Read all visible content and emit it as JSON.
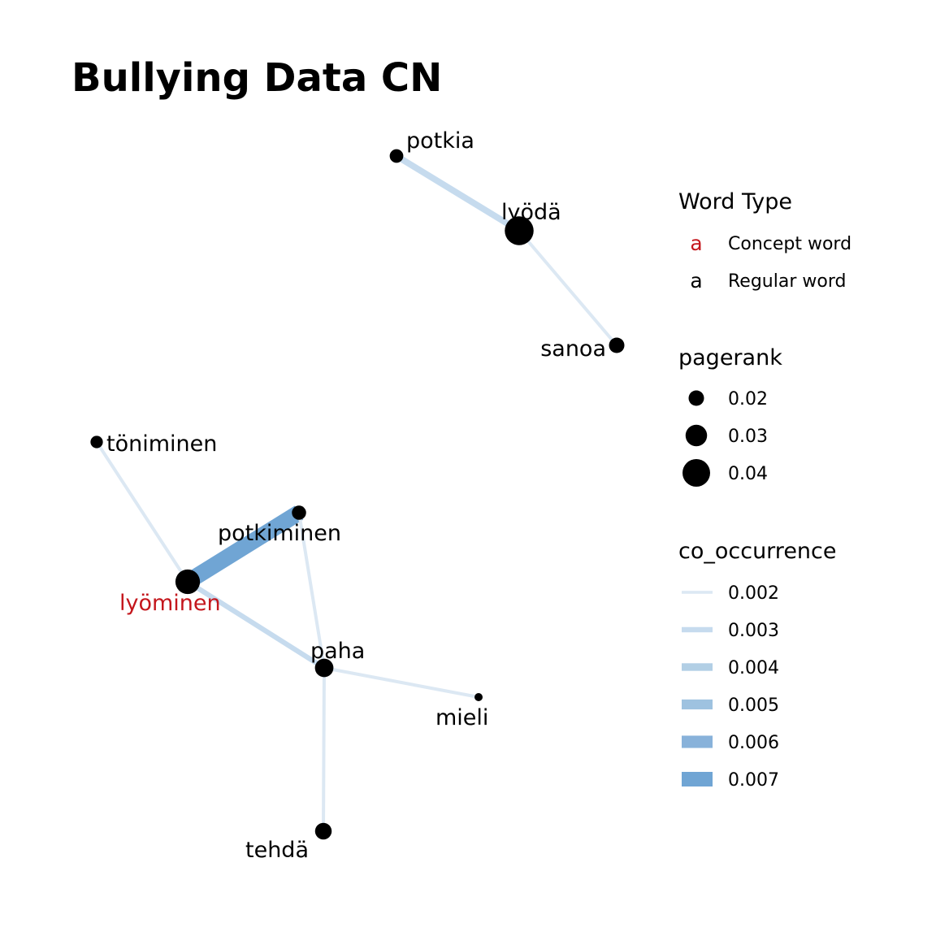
{
  "title": "Bullying Data CN",
  "colors": {
    "concept": "#c4161c",
    "regular": "#000000",
    "node": "#000000"
  },
  "nodes": [
    {
      "id": "potkia",
      "label": "potkia",
      "type": "regular",
      "pagerank": 0.017
    },
    {
      "id": "lyoda",
      "label": "lyödä",
      "type": "regular",
      "pagerank": 0.042
    },
    {
      "id": "sanoa",
      "label": "sanoa",
      "type": "regular",
      "pagerank": 0.02
    },
    {
      "id": "toniminen",
      "label": "töniminen",
      "type": "regular",
      "pagerank": 0.015
    },
    {
      "id": "potkiminen",
      "label": "potkiminen",
      "type": "regular",
      "pagerank": 0.018
    },
    {
      "id": "lyominen",
      "label": "lyöminen",
      "type": "concept",
      "pagerank": 0.035
    },
    {
      "id": "paha",
      "label": "paha",
      "type": "regular",
      "pagerank": 0.025
    },
    {
      "id": "mieli",
      "label": "mieli",
      "type": "regular",
      "pagerank": 0.008
    },
    {
      "id": "tehda",
      "label": "tehdä",
      "type": "regular",
      "pagerank": 0.022
    }
  ],
  "edges": [
    {
      "from": "potkia",
      "to": "lyoda",
      "co_occurrence": 0.0032
    },
    {
      "from": "lyoda",
      "to": "sanoa",
      "co_occurrence": 0.002
    },
    {
      "from": "toniminen",
      "to": "lyominen",
      "co_occurrence": 0.002
    },
    {
      "from": "lyominen",
      "to": "potkiminen",
      "co_occurrence": 0.007
    },
    {
      "from": "potkiminen",
      "to": "paha",
      "co_occurrence": 0.002
    },
    {
      "from": "lyominen",
      "to": "paha",
      "co_occurrence": 0.0027
    },
    {
      "from": "paha",
      "to": "mieli",
      "co_occurrence": 0.002
    },
    {
      "from": "paha",
      "to": "tehda",
      "co_occurrence": 0.002
    }
  ],
  "legend": {
    "word_type": {
      "title": "Word Type",
      "symbol": "a",
      "items": [
        {
          "label": "Concept word",
          "type": "concept"
        },
        {
          "label": "Regular word",
          "type": "regular"
        }
      ]
    },
    "pagerank": {
      "title": "pagerank",
      "items": [
        {
          "label": "0.02",
          "value": 0.02
        },
        {
          "label": "0.03",
          "value": 0.03
        },
        {
          "label": "0.04",
          "value": 0.04
        }
      ]
    },
    "co_occurrence": {
      "title": "co_occurrence",
      "items": [
        {
          "label": "0.002",
          "value": 0.002,
          "color": "#dce8f3"
        },
        {
          "label": "0.003",
          "value": 0.003,
          "color": "#c6dbee"
        },
        {
          "label": "0.004",
          "value": 0.004,
          "color": "#b2cfe5"
        },
        {
          "label": "0.005",
          "value": 0.005,
          "color": "#9ec2e0"
        },
        {
          "label": "0.006",
          "value": 0.006,
          "color": "#88b2da"
        },
        {
          "label": "0.007",
          "value": 0.007,
          "color": "#70a5d4"
        }
      ]
    }
  }
}
